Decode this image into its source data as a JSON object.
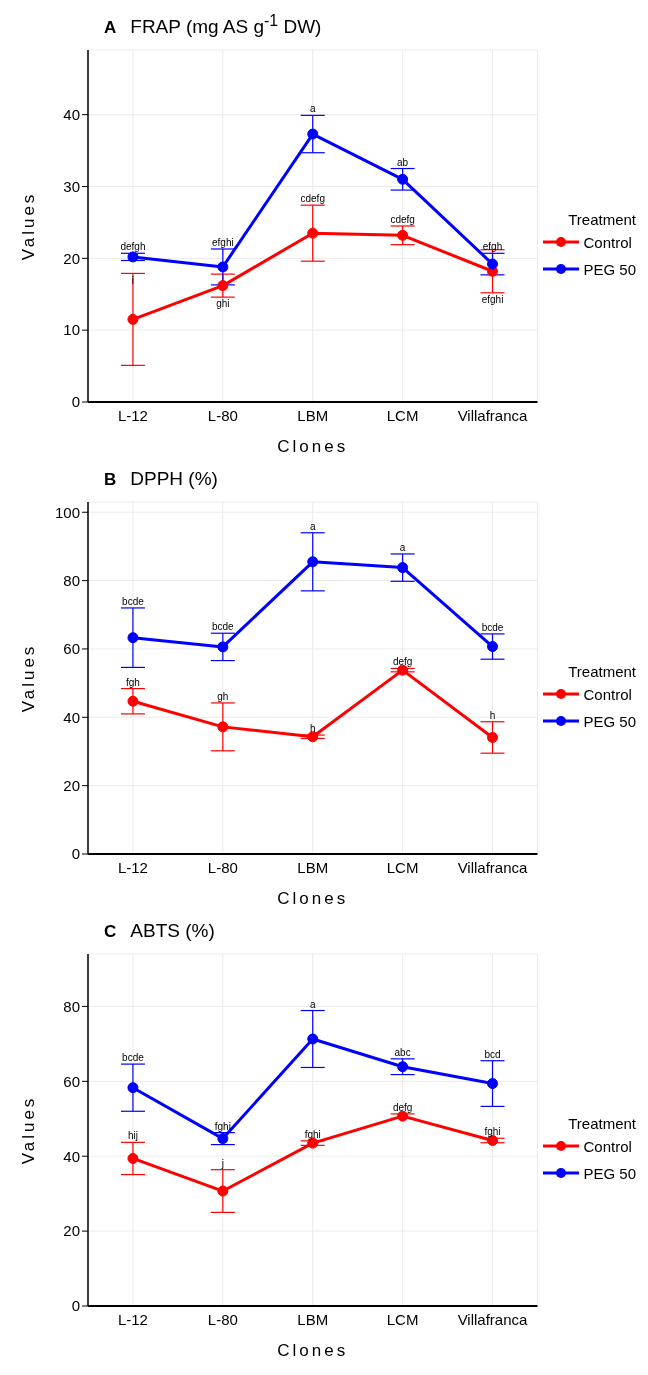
{
  "chart_data": [
    {
      "type": "line",
      "title": "FRAP (mg AS g$^{-1}$ DW)",
      "xlabel": "Clones",
      "ylabel": "Values",
      "legend_title": "Treatment",
      "categories": [
        "L-12",
        "L-80",
        "LBM",
        "LCM",
        "Villafranca"
      ],
      "series": [
        {
          "name": "Control",
          "color": "#ff0000",
          "values": [
            11.5,
            16.2,
            23.5,
            23.2,
            18.2
          ],
          "errors": [
            6.4,
            1.6,
            3.9,
            1.3,
            3.0
          ]
        },
        {
          "name": "PEG 50",
          "color": "#0000ff",
          "values": [
            20.2,
            18.8,
            37.3,
            31.0,
            19.2
          ],
          "errors": [
            0.5,
            2.5,
            2.6,
            1.5,
            1.5
          ]
        }
      ],
      "ylim": [
        0,
        49
      ],
      "yticks": [
        0,
        10,
        20,
        30,
        40
      ],
      "grid": true,
      "legend": "right",
      "marker": "circle",
      "line_style": "solid",
      "annotations": [
        "A",
        {
          "text": "defgh",
          "x": "L-12",
          "y": 20.7
        },
        {
          "text": "i",
          "x": "L-12",
          "y": 17.9
        },
        {
          "text": "efghi",
          "x": "L-80",
          "y": 21.3
        },
        {
          "text": "ghi",
          "x": "L-80",
          "y": 14.6
        },
        {
          "text": "a",
          "x": "LBM",
          "y": 39.9
        },
        {
          "text": "cdefg",
          "x": "LBM",
          "y": 27.4
        },
        {
          "text": "ab",
          "x": "LCM",
          "y": 32.5
        },
        {
          "text": "cdefg",
          "x": "LCM",
          "y": 24.5
        },
        {
          "text": "efgh",
          "x": "Villafranca",
          "y": 20.7
        },
        {
          "text": "efghi",
          "x": "Villafranca",
          "y": 15.2
        }
      ]
    },
    {
      "type": "line",
      "title": "DPPH (%)",
      "xlabel": "Clones",
      "ylabel": "Values",
      "legend_title": "Treatment",
      "categories": [
        "L-12",
        "L-80",
        "LBM",
        "LCM",
        "Villafranca"
      ],
      "series": [
        {
          "name": "Control",
          "color": "#ff0000",
          "values": [
            44.7,
            37.2,
            34.3,
            53.8,
            34.1
          ],
          "errors": [
            3.7,
            7.0,
            0.5,
            0.5,
            4.6
          ]
        },
        {
          "name": "PEG 50",
          "color": "#0000ff",
          "values": [
            63.3,
            60.6,
            85.5,
            83.8,
            60.7
          ],
          "errors": [
            8.7,
            4.0,
            8.5,
            4.0,
            3.7
          ]
        }
      ],
      "ylim": [
        0,
        103
      ],
      "yticks": [
        0,
        20,
        40,
        60,
        80,
        100
      ],
      "grid": true,
      "legend": "right",
      "marker": "circle",
      "line_style": "solid",
      "annotations": [
        "B",
        {
          "text": "bcde",
          "x": "L-12",
          "y": 72.0
        },
        {
          "text": "fgh",
          "x": "L-12",
          "y": 48.4
        },
        {
          "text": "bcde",
          "x": "L-80",
          "y": 64.6
        },
        {
          "text": "gh",
          "x": "L-80",
          "y": 44.2
        },
        {
          "text": "a",
          "x": "LBM",
          "y": 94.0
        },
        {
          "text": "h",
          "x": "LBM",
          "y": 34.8
        },
        {
          "text": "a",
          "x": "LCM",
          "y": 87.8
        },
        {
          "text": "defg",
          "x": "LCM",
          "y": 54.3
        },
        {
          "text": "bcde",
          "x": "Villafranca",
          "y": 64.4
        },
        {
          "text": "h",
          "x": "Villafranca",
          "y": 38.7
        }
      ]
    },
    {
      "type": "line",
      "title": "ABTS (%)",
      "xlabel": "Clones",
      "ylabel": "Values",
      "legend_title": "Treatment",
      "categories": [
        "L-12",
        "L-80",
        "LBM",
        "LCM",
        "Villafranca"
      ],
      "series": [
        {
          "name": "Control",
          "color": "#ff0000",
          "values": [
            39.4,
            30.7,
            43.5,
            50.7,
            44.2
          ],
          "errors": [
            4.3,
            5.7,
            0.6,
            0.6,
            0.6
          ]
        },
        {
          "name": "PEG 50",
          "color": "#0000ff",
          "values": [
            58.3,
            44.7,
            71.3,
            63.9,
            59.4
          ],
          "errors": [
            6.3,
            1.6,
            7.6,
            2.1,
            6.1
          ]
        }
      ],
      "ylim": [
        0,
        94
      ],
      "yticks": [
        0,
        20,
        40,
        60,
        80
      ],
      "grid": true,
      "legend": "right",
      "marker": "circle",
      "line_style": "solid",
      "annotations": [
        "C",
        {
          "text": "bcde",
          "x": "L-12",
          "y": 64.6
        },
        {
          "text": "hij",
          "x": "L-12",
          "y": 43.7
        },
        {
          "text": "fghi",
          "x": "L-80",
          "y": 46.3
        },
        {
          "text": "j",
          "x": "L-80",
          "y": 36.4
        },
        {
          "text": "a",
          "x": "LBM",
          "y": 78.9
        },
        {
          "text": "fghi",
          "x": "LBM",
          "y": 44.1
        },
        {
          "text": "abc",
          "x": "LCM",
          "y": 66.0
        },
        {
          "text": "defg",
          "x": "LCM",
          "y": 51.3
        },
        {
          "text": "bcd",
          "x": "Villafranca",
          "y": 65.5
        },
        {
          "text": "fghi",
          "x": "Villafranca",
          "y": 44.8
        }
      ]
    }
  ]
}
